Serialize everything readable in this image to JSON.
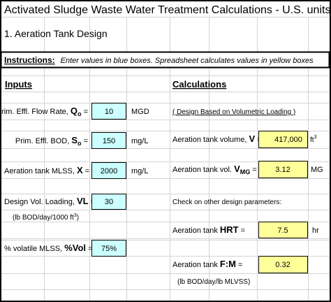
{
  "header": {
    "title": "Activated Sludge Waste Water Treatment Calculations - U.S. units",
    "section": "1. Aeration Tank Design"
  },
  "instructions": {
    "label": "Instructions:",
    "text": "Enter values in blue boxes.  Spreadsheet calculates values in yellow boxes"
  },
  "inputs": {
    "heading": "Inputs",
    "flow": {
      "label": "Prim. Effl. Flow Rate, ",
      "symbol": "Q",
      "subscript": "o",
      "equals": " =",
      "value": "10",
      "unit": "MGD"
    },
    "bod": {
      "label": "Prim. Effl. BOD, ",
      "symbol": "S",
      "subscript": "o",
      "equals": " =",
      "value": "150",
      "unit": "mg/L"
    },
    "mlss": {
      "label": "Aeration tank MLSS, ",
      "symbol": "X",
      "equals": " =",
      "value": "2000",
      "unit": "mg/L"
    },
    "loading": {
      "label": "Design Vol. Loading, ",
      "symbol": "VL",
      "equals": " =",
      "value": "30",
      "note": "(lb BOD/day/1000 ft",
      "note_sup": "3",
      "note_end": ")"
    },
    "volatile": {
      "label": "% volatile MLSS, ",
      "symbol": "%Vol",
      "equals": " =",
      "value": "75%"
    }
  },
  "calculations": {
    "heading": "Calculations",
    "basis": "( Design Based on Volumetric Loading )",
    "volume": {
      "label": "Aeration tank volume, ",
      "symbol": "V",
      "equals": " =",
      "value": "417,000",
      "unit": "ft",
      "unit_sup": "3"
    },
    "volume_mg": {
      "label": "Aeration tank vol. ",
      "symbol": "V",
      "subscript": "MG",
      "equals": " =",
      "value": "3.12",
      "unit": "MG"
    },
    "check": "Check on other design parameters:",
    "hrt": {
      "label": "Aeration tank ",
      "symbol": "HRT",
      "equals": " =",
      "value": "7.5",
      "unit": "hr"
    },
    "fm": {
      "label": "Aeration tank ",
      "symbol": "F:M",
      "equals": " =",
      "value": "0.32",
      "note": "(lb BOD/day/lb MLVSS)"
    }
  }
}
